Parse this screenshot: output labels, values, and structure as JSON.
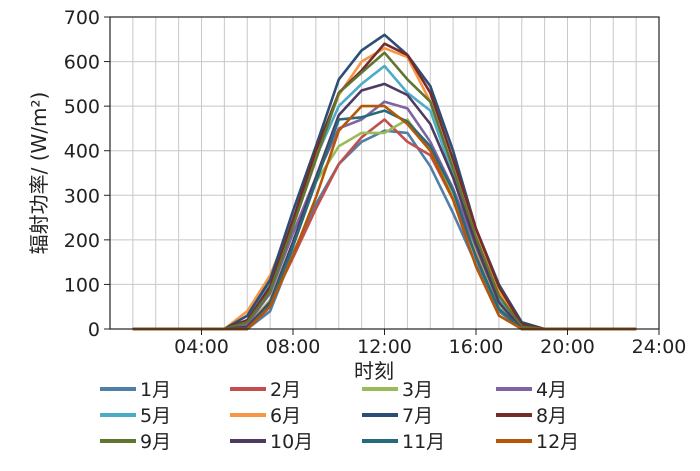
{
  "chart_data": {
    "type": "line",
    "xlabel": "时刻",
    "ylabel": "辐射功率/ (W/m²)",
    "xlim": [
      0,
      24
    ],
    "ylim": [
      0,
      700
    ],
    "x_ticks": [
      4,
      8,
      12,
      16,
      20,
      24
    ],
    "x_tick_labels": [
      "04:00",
      "08:00",
      "12:00",
      "16:00",
      "20:00",
      "24:00"
    ],
    "y_ticks": [
      0,
      100,
      200,
      300,
      400,
      500,
      600,
      700
    ],
    "y_tick_labels": [
      "0",
      "100",
      "200",
      "300",
      "400",
      "500",
      "600",
      "700"
    ],
    "grid": true,
    "legend_position": "bottom",
    "x": [
      1,
      2,
      3,
      4,
      5,
      6,
      7,
      8,
      9,
      10,
      11,
      12,
      13,
      14,
      15,
      16,
      17,
      18,
      19,
      20,
      21,
      22,
      23
    ],
    "series": [
      {
        "name": "1月",
        "color": "#4f7fa8",
        "values": [
          0,
          0,
          0,
          0,
          0,
          0,
          40,
          170,
          280,
          370,
          420,
          445,
          440,
          365,
          260,
          145,
          40,
          0,
          0,
          0,
          0,
          0,
          0
        ]
      },
      {
        "name": "2月",
        "color": "#c0504d",
        "values": [
          0,
          0,
          0,
          0,
          0,
          0,
          55,
          160,
          270,
          370,
          430,
          470,
          420,
          390,
          290,
          165,
          45,
          0,
          0,
          0,
          0,
          0,
          0
        ]
      },
      {
        "name": "3月",
        "color": "#9bbb59",
        "values": [
          0,
          0,
          0,
          0,
          0,
          5,
          65,
          195,
          330,
          410,
          440,
          440,
          470,
          400,
          300,
          180,
          55,
          0,
          0,
          0,
          0,
          0,
          0
        ]
      },
      {
        "name": "4月",
        "color": "#8064a2",
        "values": [
          0,
          0,
          0,
          0,
          0,
          10,
          80,
          215,
          340,
          450,
          470,
          510,
          495,
          420,
          315,
          185,
          60,
          0,
          0,
          0,
          0,
          0,
          0
        ]
      },
      {
        "name": "5月",
        "color": "#4bacc6",
        "values": [
          0,
          0,
          0,
          0,
          0,
          20,
          100,
          245,
          385,
          500,
          550,
          590,
          530,
          490,
          345,
          200,
          65,
          0,
          0,
          0,
          0,
          0,
          0
        ]
      },
      {
        "name": "6月",
        "color": "#f79646",
        "values": [
          0,
          0,
          0,
          0,
          0,
          40,
          120,
          245,
          390,
          525,
          600,
          630,
          610,
          510,
          360,
          210,
          85,
          10,
          0,
          0,
          0,
          0,
          0
        ]
      },
      {
        "name": "7月",
        "color": "#2c4d75",
        "values": [
          0,
          0,
          0,
          0,
          0,
          30,
          110,
          265,
          410,
          560,
          625,
          660,
          615,
          545,
          400,
          225,
          100,
          15,
          0,
          0,
          0,
          0,
          0
        ]
      },
      {
        "name": "8月",
        "color": "#772c2a",
        "values": [
          0,
          0,
          0,
          0,
          0,
          20,
          95,
          245,
          400,
          530,
          580,
          640,
          615,
          530,
          380,
          225,
          95,
          10,
          0,
          0,
          0,
          0,
          0
        ]
      },
      {
        "name": "9月",
        "color": "#5f7530",
        "values": [
          0,
          0,
          0,
          0,
          0,
          15,
          85,
          230,
          380,
          530,
          575,
          620,
          560,
          510,
          360,
          205,
          75,
          5,
          0,
          0,
          0,
          0,
          0
        ]
      },
      {
        "name": "10月",
        "color": "#4d3b62",
        "values": [
          0,
          0,
          0,
          0,
          0,
          5,
          60,
          195,
          340,
          480,
          535,
          550,
          525,
          460,
          340,
          190,
          60,
          0,
          0,
          0,
          0,
          0,
          0
        ]
      },
      {
        "name": "11月",
        "color": "#276a7c",
        "values": [
          0,
          0,
          0,
          0,
          0,
          0,
          55,
          185,
          330,
          470,
          475,
          490,
          465,
          410,
          310,
          160,
          45,
          0,
          0,
          0,
          0,
          0,
          0
        ]
      },
      {
        "name": "12月",
        "color": "#b65708",
        "values": [
          0,
          0,
          0,
          0,
          0,
          0,
          50,
          165,
          295,
          445,
          500,
          500,
          460,
          400,
          290,
          140,
          30,
          0,
          0,
          0,
          0,
          0,
          0
        ]
      }
    ]
  }
}
